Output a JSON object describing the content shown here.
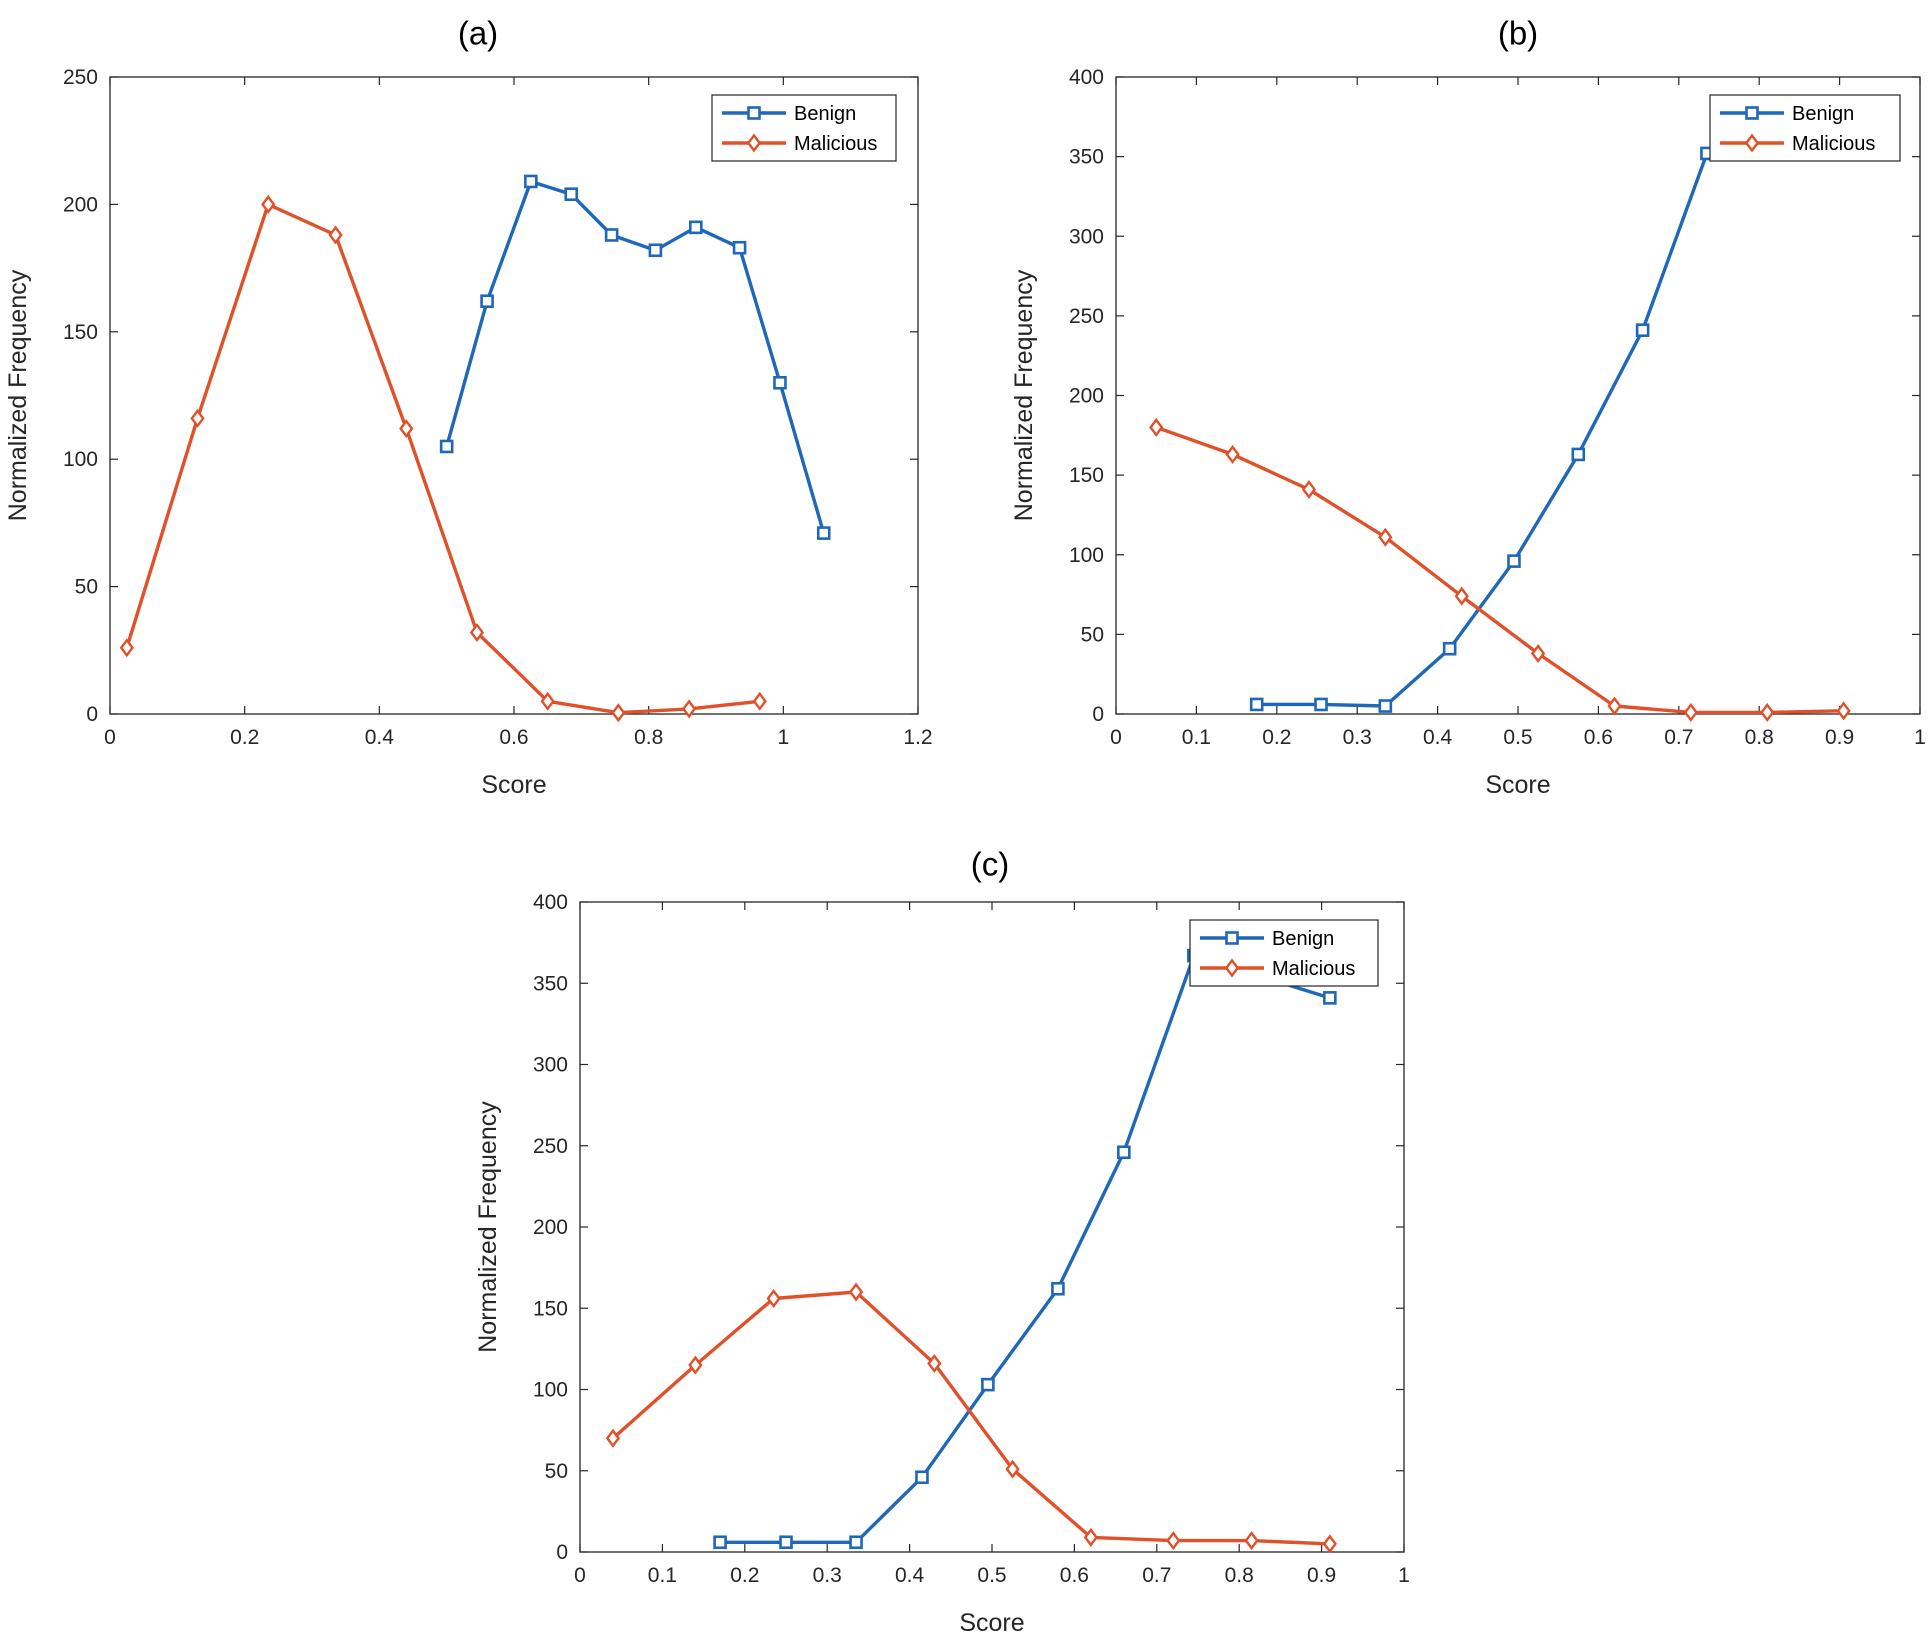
{
  "colors": {
    "benign": "#1f67b8",
    "malicious": "#e0512a",
    "axis": "#262626"
  },
  "charts": [
    {
      "id": "a",
      "panel_label": "(a)",
      "type": "line",
      "xlabel": "Score",
      "ylabel": "Normalized Frequency",
      "xlim": [
        0,
        1.2
      ],
      "ylim": [
        0,
        250
      ],
      "xticks": [
        "0",
        "0.2",
        "0.4",
        "0.6",
        "0.8",
        "1",
        "1.2"
      ],
      "xtick_values": [
        0,
        0.2,
        0.4,
        0.6,
        0.8,
        1.0,
        1.2
      ],
      "yticks": [
        "0",
        "50",
        "100",
        "150",
        "200",
        "250"
      ],
      "ytick_values": [
        0,
        50,
        100,
        150,
        200,
        250
      ],
      "legend": {
        "position": "top-right",
        "entries": [
          "Benign",
          "Malicious"
        ]
      },
      "grid": false,
      "series": [
        {
          "name": "Benign",
          "marker": "square",
          "x": [
            0.5,
            0.56,
            0.625,
            0.685,
            0.745,
            0.81,
            0.87,
            0.935,
            0.995,
            1.06
          ],
          "y": [
            105,
            162,
            209,
            204,
            188,
            182,
            191,
            183,
            130,
            71
          ]
        },
        {
          "name": "Malicious",
          "marker": "diamond",
          "x": [
            0.025,
            0.13,
            0.235,
            0.335,
            0.44,
            0.545,
            0.65,
            0.755,
            0.86,
            0.965
          ],
          "y": [
            26,
            116,
            200,
            188,
            112,
            32,
            5,
            0.5,
            2,
            5
          ]
        }
      ]
    },
    {
      "id": "b",
      "panel_label": "(b)",
      "type": "line",
      "xlabel": "Score",
      "ylabel": "Normalized Frequency",
      "xlim": [
        0,
        1
      ],
      "ylim": [
        0,
        400
      ],
      "xticks": [
        "0",
        "0.1",
        "0.2",
        "0.3",
        "0.4",
        "0.5",
        "0.6",
        "0.7",
        "0.8",
        "0.9",
        "1"
      ],
      "xtick_values": [
        0,
        0.1,
        0.2,
        0.3,
        0.4,
        0.5,
        0.6,
        0.7,
        0.8,
        0.9,
        1.0
      ],
      "yticks": [
        "0",
        "50",
        "100",
        "150",
        "200",
        "250",
        "300",
        "350",
        "400"
      ],
      "ytick_values": [
        0,
        50,
        100,
        150,
        200,
        250,
        300,
        350,
        400
      ],
      "legend": {
        "position": "top-right",
        "entries": [
          "Benign",
          "Malicious"
        ]
      },
      "grid": false,
      "series": [
        {
          "name": "Benign",
          "marker": "square",
          "x": [
            0.175,
            0.255,
            0.335,
            0.415,
            0.495,
            0.575,
            0.655,
            0.735
          ],
          "y": [
            6,
            6,
            5,
            41,
            96,
            163,
            241,
            352
          ]
        },
        {
          "name": "Malicious",
          "marker": "diamond",
          "x": [
            0.05,
            0.145,
            0.24,
            0.335,
            0.43,
            0.525,
            0.62,
            0.715,
            0.81,
            0.905
          ],
          "y": [
            180,
            163,
            141,
            111,
            74,
            38,
            5,
            1,
            1,
            2
          ]
        }
      ]
    },
    {
      "id": "c",
      "panel_label": "(c)",
      "type": "line",
      "xlabel": "Score",
      "ylabel": "Normalized Frequency",
      "xlim": [
        0,
        1
      ],
      "ylim": [
        0,
        400
      ],
      "xticks": [
        "0",
        "0.1",
        "0.2",
        "0.3",
        "0.4",
        "0.5",
        "0.6",
        "0.7",
        "0.8",
        "0.9",
        "1"
      ],
      "xtick_values": [
        0,
        0.1,
        0.2,
        0.3,
        0.4,
        0.5,
        0.6,
        0.7,
        0.8,
        0.9,
        1.0
      ],
      "yticks": [
        "0",
        "50",
        "100",
        "150",
        "200",
        "250",
        "300",
        "350",
        "400"
      ],
      "ytick_values": [
        0,
        50,
        100,
        150,
        200,
        250,
        300,
        350,
        400
      ],
      "legend": {
        "position": "top-right",
        "entries": [
          "Benign",
          "Malicious"
        ]
      },
      "grid": false,
      "series": [
        {
          "name": "Benign",
          "marker": "square",
          "x": [
            0.17,
            0.25,
            0.335,
            0.415,
            0.495,
            0.58,
            0.66,
            0.745,
            0.91
          ],
          "y": [
            6,
            6,
            6,
            46,
            103,
            162,
            246,
            367,
            341
          ]
        },
        {
          "name": "Malicious",
          "marker": "diamond",
          "x": [
            0.04,
            0.14,
            0.235,
            0.335,
            0.43,
            0.525,
            0.62,
            0.72,
            0.815,
            0.91
          ],
          "y": [
            70,
            115,
            156,
            160,
            116,
            51,
            9,
            7,
            7,
            5
          ]
        }
      ]
    }
  ]
}
